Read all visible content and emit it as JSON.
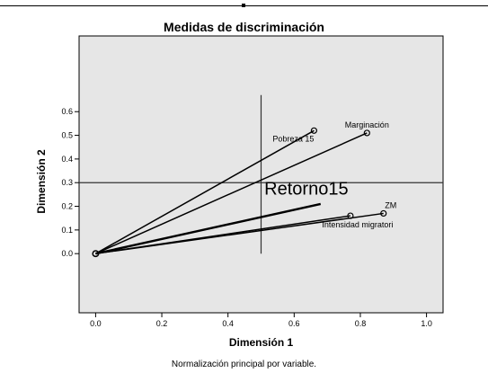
{
  "chart_data": {
    "type": "scatter",
    "title": "Medidas de discriminación",
    "xlabel": "Dimensión 1",
    "ylabel": "Dimensión 2",
    "footnote": "Normalización principal por variable.",
    "xlim": [
      -0.05,
      1.05
    ],
    "ylim": [
      -0.25,
      0.92
    ],
    "x_ticks": [
      "0.0",
      "0.2",
      "0.4",
      "0.6",
      "0.8",
      "1.0"
    ],
    "y_ticks": [
      "0.0",
      "0.1",
      "0.2",
      "0.3",
      "0.4",
      "0.5",
      "0.6"
    ],
    "reference_lines": {
      "vertical_x": 0.5,
      "vertical_y_range": [
        0.0,
        0.67
      ],
      "horizontal_y": 0.3
    },
    "origin": {
      "x": 0.0,
      "y": 0.0
    },
    "points": [
      {
        "label": "Pobreza 15",
        "x": 0.66,
        "y": 0.52,
        "label_pos": "below-left"
      },
      {
        "label": "Marginación",
        "x": 0.82,
        "y": 0.51,
        "label_pos": "above"
      },
      {
        "label": "ZM",
        "x": 0.87,
        "y": 0.17,
        "label_pos": "above-right"
      },
      {
        "label": "Intensidad migratori",
        "x": 0.77,
        "y": 0.16,
        "label_pos": "below"
      }
    ],
    "annotation": {
      "text": "Retorno15",
      "x": 0.51,
      "y": 0.25
    },
    "annotation_line": {
      "x": 0.68,
      "y": 0.21
    },
    "grid": false,
    "plot_background": "#e6e6e6",
    "line_color": "#000000"
  }
}
